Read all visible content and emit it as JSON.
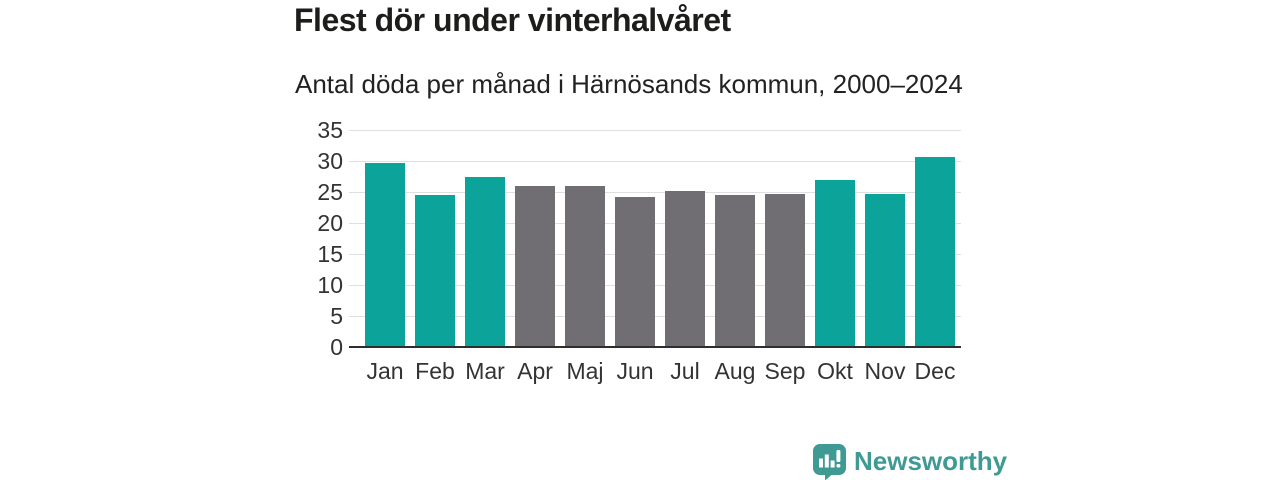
{
  "title": "Flest dör under vinterhalvåret",
  "subtitle": "Antal döda per månad i Härnösands kommun, 2000–2024",
  "footer": {
    "brand": "Newsworthy"
  },
  "colors": {
    "winter_bar": "#0ca39a",
    "summer_bar": "#706e73",
    "gridline": "#e0e0e0",
    "axis": "#2e2e2e",
    "brand_teal": "#3f9a94",
    "title_text": "#1d1d1b"
  },
  "chart_data": {
    "type": "bar",
    "title": "Flest dör under vinterhalvåret",
    "subtitle": "Antal döda per månad i Härnösands kommun, 2000–2024",
    "categories": [
      "Jan",
      "Feb",
      "Mar",
      "Apr",
      "Maj",
      "Jun",
      "Jul",
      "Aug",
      "Sep",
      "Okt",
      "Nov",
      "Dec"
    ],
    "values": [
      29.7,
      24.5,
      27.5,
      25.9,
      26.0,
      24.2,
      25.2,
      24.5,
      24.6,
      26.9,
      24.6,
      30.7
    ],
    "bar_colors": [
      "#0ca39a",
      "#0ca39a",
      "#0ca39a",
      "#706e73",
      "#706e73",
      "#706e73",
      "#706e73",
      "#706e73",
      "#706e73",
      "#0ca39a",
      "#0ca39a",
      "#0ca39a"
    ],
    "xlabel": "",
    "ylabel": "",
    "ylim": [
      0,
      35
    ],
    "yticks": [
      0,
      5,
      10,
      15,
      20,
      25,
      30,
      35
    ],
    "grid": "horizontal",
    "legend": "none"
  }
}
